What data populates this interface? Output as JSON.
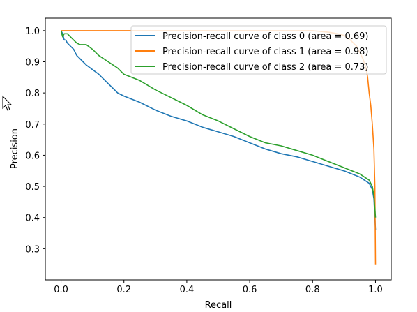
{
  "chart_data": {
    "type": "line",
    "xlabel": "Recall",
    "ylabel": "Precision",
    "xlim": [
      -0.05,
      1.05
    ],
    "ylim": [
      0.2,
      1.04
    ],
    "xticks": [
      0.0,
      0.2,
      0.4,
      0.6,
      0.8,
      1.0
    ],
    "xtick_labels": [
      "0.0",
      "0.2",
      "0.4",
      "0.6",
      "0.8",
      "1.0"
    ],
    "yticks": [
      0.3,
      0.4,
      0.5,
      0.6,
      0.7,
      0.8,
      0.9,
      1.0
    ],
    "ytick_labels": [
      "0.3",
      "0.4",
      "0.5",
      "0.6",
      "0.7",
      "0.8",
      "0.9",
      "1.0"
    ],
    "grid": false,
    "legend_position": "top-right",
    "series": [
      {
        "name": "Precision-recall curve of class 0 (area = 0.69)",
        "color": "#1f77b4",
        "x": [
          0.0,
          0.005,
          0.01,
          0.015,
          0.02,
          0.03,
          0.04,
          0.05,
          0.06,
          0.07,
          0.08,
          0.1,
          0.12,
          0.15,
          0.18,
          0.2,
          0.25,
          0.3,
          0.35,
          0.4,
          0.45,
          0.5,
          0.55,
          0.6,
          0.65,
          0.7,
          0.75,
          0.8,
          0.85,
          0.9,
          0.95,
          0.98,
          0.99,
          0.995,
          1.0
        ],
        "y": [
          1.0,
          0.99,
          0.97,
          0.97,
          0.96,
          0.95,
          0.94,
          0.92,
          0.91,
          0.9,
          0.89,
          0.875,
          0.86,
          0.83,
          0.8,
          0.79,
          0.77,
          0.745,
          0.725,
          0.71,
          0.69,
          0.675,
          0.66,
          0.64,
          0.62,
          0.605,
          0.595,
          0.58,
          0.565,
          0.55,
          0.53,
          0.51,
          0.49,
          0.46,
          0.36
        ]
      },
      {
        "name": "Precision-recall curve of class 1 (area = 0.98)",
        "color": "#ff7f0e",
        "x": [
          0.0,
          0.1,
          0.2,
          0.3,
          0.4,
          0.5,
          0.6,
          0.7,
          0.8,
          0.85,
          0.88,
          0.9,
          0.92,
          0.94,
          0.95,
          0.96,
          0.97,
          0.975,
          0.98,
          0.985,
          0.99,
          0.995,
          0.998,
          1.0
        ],
        "y": [
          1.0,
          1.0,
          1.0,
          1.0,
          1.0,
          1.0,
          1.0,
          1.0,
          1.0,
          0.995,
          0.99,
          0.985,
          0.97,
          0.95,
          0.93,
          0.91,
          0.88,
          0.85,
          0.8,
          0.76,
          0.7,
          0.62,
          0.5,
          0.25
        ]
      },
      {
        "name": "Precision-recall curve of class 2 (area = 0.73)",
        "color": "#2ca02c",
        "x": [
          0.0,
          0.005,
          0.01,
          0.02,
          0.03,
          0.04,
          0.05,
          0.06,
          0.07,
          0.08,
          0.1,
          0.12,
          0.15,
          0.18,
          0.2,
          0.25,
          0.3,
          0.35,
          0.4,
          0.45,
          0.5,
          0.55,
          0.6,
          0.65,
          0.7,
          0.75,
          0.8,
          0.85,
          0.9,
          0.95,
          0.98,
          0.99,
          0.995,
          1.0
        ],
        "y": [
          1.0,
          0.98,
          0.99,
          0.99,
          0.98,
          0.97,
          0.96,
          0.955,
          0.955,
          0.955,
          0.94,
          0.92,
          0.9,
          0.88,
          0.86,
          0.84,
          0.81,
          0.785,
          0.76,
          0.73,
          0.71,
          0.685,
          0.66,
          0.64,
          0.63,
          0.615,
          0.6,
          0.58,
          0.56,
          0.54,
          0.52,
          0.5,
          0.47,
          0.4
        ]
      }
    ]
  },
  "cursor": {
    "icon": "mouse-pointer-icon"
  }
}
